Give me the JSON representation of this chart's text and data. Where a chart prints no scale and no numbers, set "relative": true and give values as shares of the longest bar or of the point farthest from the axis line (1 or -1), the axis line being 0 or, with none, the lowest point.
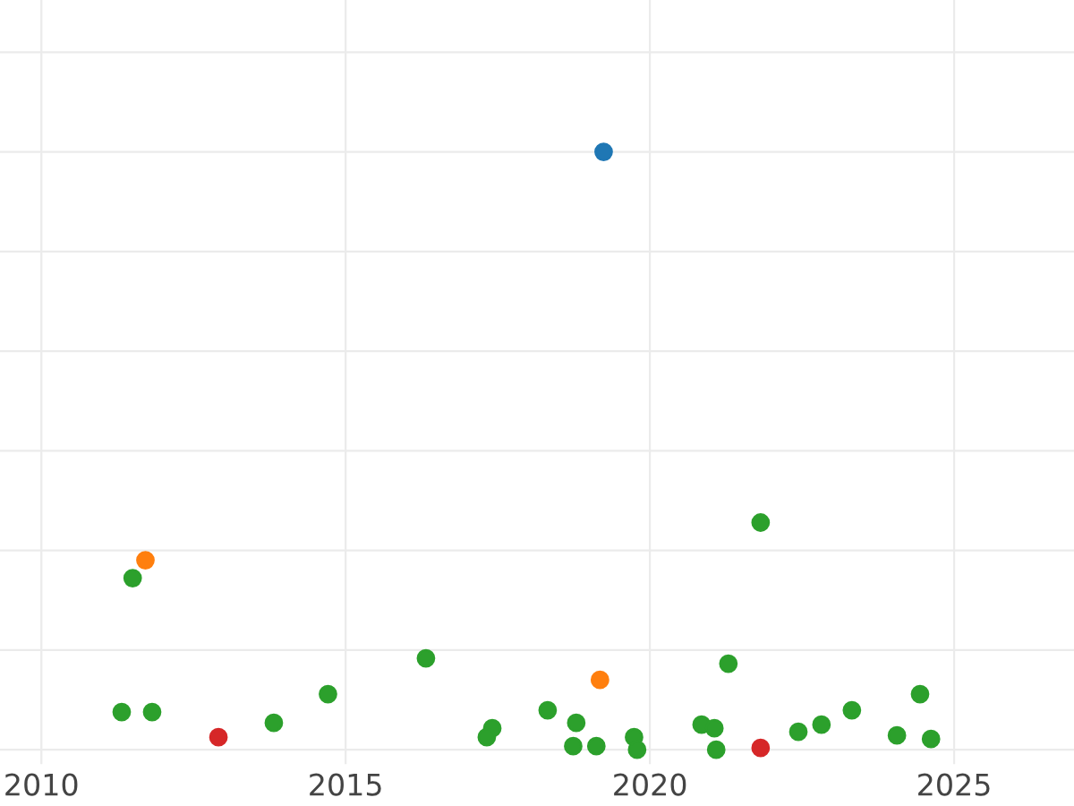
{
  "chart_data": {
    "type": "scatter",
    "relative": true,
    "xlim": [
      2009.32,
      2026.97
    ],
    "xticks": [
      2010,
      2015,
      2020,
      2025
    ],
    "grid": true,
    "tick_labels": "x",
    "marker": "circle",
    "series": [
      {
        "color": "#1f77b4",
        "x": [
          2019.24
        ],
        "values": [
          1
        ]
      },
      {
        "color": "#ff7f0e",
        "x": [
          2011.71,
          2019.18
        ],
        "values": [
          0.317,
          0.117
        ]
      },
      {
        "color": "#2ca02c",
        "x": [
          2011.5,
          2011.32,
          2011.82,
          2013.82,
          2014.71,
          2016.32,
          2017.41,
          2017.32,
          2018.32,
          2018.79,
          2018.74,
          2019.12,
          2019.74,
          2019.79,
          2020.85,
          2021.06,
          2021.09,
          2021.29,
          2021.82,
          2022.44,
          2022.82,
          2023.32,
          2024.06,
          2024.44,
          2024.62
        ],
        "values": [
          0.287,
          0.063,
          0.063,
          0.045,
          0.093,
          0.153,
          0.036,
          0.021,
          0.066,
          0.045,
          0.006,
          0.006,
          0.021,
          0,
          0.042,
          0.036,
          0,
          0.144,
          0.38,
          0.03,
          0.042,
          0.066,
          0.024,
          0.093,
          0.018
        ]
      },
      {
        "color": "#d62728",
        "x": [
          2012.91,
          2021.82
        ],
        "values": [
          0.021,
          0.003
        ]
      }
    ]
  }
}
